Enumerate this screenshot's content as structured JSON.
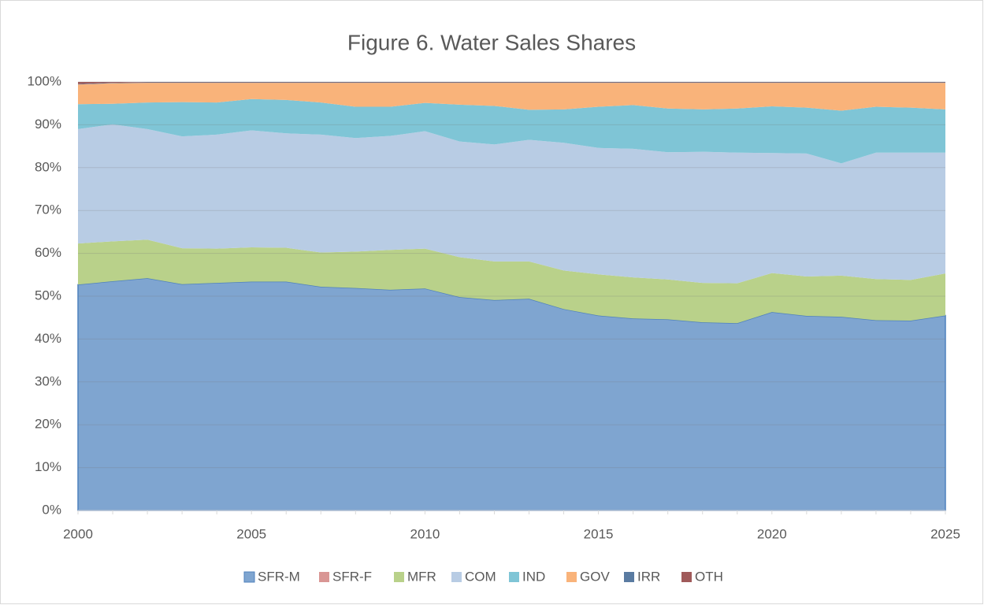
{
  "chart_data": {
    "type": "stacked_area",
    "title": "Figure 6. Water Sales Shares",
    "x": [
      2000,
      2001,
      2002,
      2003,
      2004,
      2005,
      2006,
      2007,
      2008,
      2009,
      2010,
      2011,
      2012,
      2013,
      2014,
      2015,
      2016,
      2017,
      2018,
      2019,
      2020,
      2021,
      2022,
      2023,
      2024,
      2025
    ],
    "series": [
      {
        "name": "SFR-M",
        "color": "#7fa5d0",
        "values": [
          52.7,
          53.5,
          54.2,
          52.8,
          53.1,
          53.4,
          53.4,
          52.2,
          51.9,
          51.5,
          51.8,
          49.8,
          49.1,
          49.4,
          47.0,
          45.5,
          44.8,
          44.6,
          43.9,
          43.7,
          46.3,
          45.4,
          45.2,
          44.4,
          44.3,
          45.5
        ]
      },
      {
        "name": "SFR-F",
        "color": "#d99694",
        "values": [
          0,
          0,
          0,
          0,
          0,
          0,
          0,
          0,
          0,
          0,
          0,
          0,
          0,
          0,
          0,
          0,
          0,
          0,
          0,
          0,
          0,
          0,
          0,
          0,
          0,
          0
        ]
      },
      {
        "name": "MFR",
        "color": "#b9d18a",
        "values": [
          9.6,
          9.3,
          9.0,
          8.4,
          8.0,
          8.0,
          7.9,
          8.0,
          8.5,
          9.3,
          9.3,
          9.3,
          9.0,
          8.7,
          9.0,
          9.6,
          9.6,
          9.3,
          9.2,
          9.3,
          9.1,
          9.2,
          9.6,
          9.6,
          9.5,
          9.8
        ]
      },
      {
        "name": "COM",
        "color": "#b8cce4",
        "values": [
          26.7,
          27.3,
          25.8,
          26.1,
          26.6,
          27.3,
          26.7,
          27.5,
          26.5,
          26.6,
          27.4,
          27.0,
          27.3,
          28.4,
          29.8,
          29.5,
          30.0,
          29.7,
          30.6,
          30.5,
          28.0,
          28.7,
          26.2,
          29.5,
          29.7,
          28.2
        ]
      },
      {
        "name": "IND",
        "color": "#7fc5d6",
        "values": [
          5.8,
          4.8,
          6.2,
          8.0,
          7.5,
          7.3,
          7.8,
          7.5,
          7.3,
          6.8,
          6.6,
          8.6,
          9.0,
          7.0,
          7.8,
          9.6,
          10.2,
          10.2,
          9.9,
          10.3,
          10.9,
          10.7,
          12.3,
          10.7,
          10.5,
          10.1
        ]
      },
      {
        "name": "GOV",
        "color": "#f9b37a",
        "values": [
          4.6,
          4.8,
          4.6,
          4.5,
          4.6,
          3.8,
          4.0,
          4.6,
          5.6,
          5.6,
          4.7,
          5.1,
          5.4,
          6.3,
          6.2,
          5.6,
          5.2,
          6.0,
          6.2,
          6.0,
          5.5,
          5.8,
          6.5,
          5.6,
          5.8,
          6.2
        ]
      },
      {
        "name": "IRR",
        "color": "#5a7ba1",
        "values": [
          0.1,
          0.1,
          0.1,
          0.1,
          0.1,
          0.1,
          0.1,
          0.1,
          0.1,
          0.1,
          0.1,
          0.1,
          0.1,
          0.1,
          0.1,
          0.1,
          0.1,
          0.1,
          0.1,
          0.1,
          0.1,
          0.1,
          0.1,
          0.1,
          0.1,
          0.1
        ]
      },
      {
        "name": "OTH",
        "color": "#a05a5a",
        "values": [
          0.5,
          0.2,
          0.1,
          0.1,
          0.1,
          0.1,
          0.1,
          0.1,
          0.1,
          0.1,
          0.1,
          0.1,
          0.1,
          0.1,
          0.1,
          0.1,
          0.1,
          0.1,
          0.1,
          0.1,
          0.1,
          0.1,
          0.1,
          0.1,
          0.1,
          0.1
        ]
      }
    ],
    "xlim": [
      2000,
      2025
    ],
    "xticks": [
      2000,
      2005,
      2010,
      2015,
      2020,
      2025
    ],
    "ylim": [
      0,
      100
    ],
    "yticks": [
      {
        "value": 0,
        "label": "0%"
      },
      {
        "value": 10,
        "label": "10%"
      },
      {
        "value": 20,
        "label": "20%"
      },
      {
        "value": 30,
        "label": "30%"
      },
      {
        "value": 40,
        "label": "40%"
      },
      {
        "value": 50,
        "label": "50%"
      },
      {
        "value": 60,
        "label": "60%"
      },
      {
        "value": 70,
        "label": "70%"
      },
      {
        "value": 80,
        "label": "80%"
      },
      {
        "value": 90,
        "label": "90%"
      },
      {
        "value": 100,
        "label": "100%"
      }
    ],
    "grid": true,
    "legend": "bottom"
  }
}
